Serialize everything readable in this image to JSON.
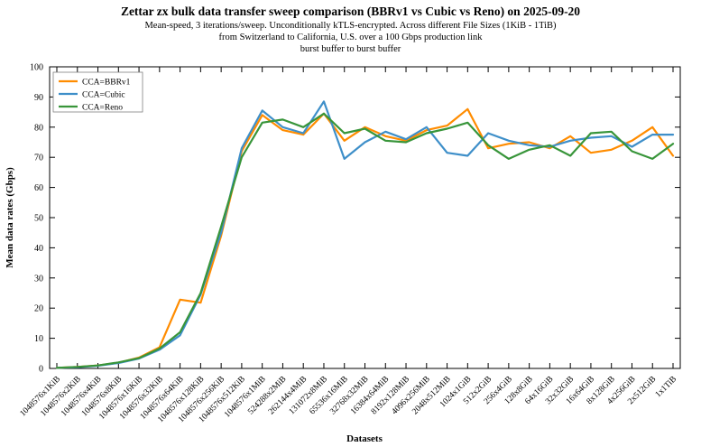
{
  "chart_data": {
    "type": "line",
    "title": "Zettar zx bulk data transfer sweep comparison (BBRv1 vs Cubic vs Reno) on 2025-09-20",
    "subtitles": [
      "Mean-speed, 3 iterations/sweep. Unconditionally kTLS-encrypted. Across different File Sizes (1KiB - 1TiB)",
      "from Switzerland to California, U.S. over a 100 Gbps production link",
      "burst buffer to burst buffer"
    ],
    "xlabel": "Datasets",
    "ylabel": "Mean data rates (Gbps)",
    "ylim": [
      0,
      100
    ],
    "ytick_step": 10,
    "grid": false,
    "legend_position": "top-left",
    "categories": [
      "1048576x1KiB",
      "1048576x2KiB",
      "1048576x4KiB",
      "1048576x8KiB",
      "1048576x16KiB",
      "1048576x32KiB",
      "1048576x64KiB",
      "1048576x128KiB",
      "1048576x256KiB",
      "1048576x512KiB",
      "1048576x1MiB",
      "524288x2MiB",
      "262144x4MiB",
      "131072x8MiB",
      "65536x16MiB",
      "32768x32MiB",
      "16384x64MiB",
      "8192x128MiB",
      "4096x256MiB",
      "2048x512MiB",
      "1024x1GiB",
      "512x2GiB",
      "256x4GiB",
      "128x8GiB",
      "64x16GiB",
      "32x32GiB",
      "16x64GiB",
      "8x128GiB",
      "4x256GiB",
      "2x512GiB",
      "1x1TiB"
    ],
    "series": [
      {
        "name": "CCA=BBRv1",
        "color": "#ff8c00",
        "values": [
          0.2,
          0.5,
          1.0,
          1.9,
          3.6,
          7.0,
          22.8,
          21.8,
          44.0,
          72.0,
          84.0,
          79.0,
          77.5,
          84.5,
          75.5,
          80.0,
          77.0,
          75.5,
          79.0,
          80.5,
          86.0,
          73.0,
          74.5,
          75.0,
          73.0,
          77.0,
          71.5,
          72.5,
          75.5,
          80.0,
          70.5
        ]
      },
      {
        "name": "CCA=Cubic",
        "color": "#3e8fc9",
        "values": [
          0.2,
          0.4,
          0.9,
          1.8,
          3.3,
          6.2,
          11.0,
          24.5,
          45.0,
          73.0,
          85.5,
          80.0,
          78.0,
          88.5,
          69.5,
          75.0,
          78.5,
          76.0,
          80.0,
          71.5,
          70.5,
          78.0,
          75.5,
          74.0,
          73.5,
          75.5,
          76.5,
          77.0,
          73.5,
          77.5,
          77.5
        ]
      },
      {
        "name": "CCA=Reno",
        "color": "#38953a",
        "values": [
          0.2,
          0.5,
          1.0,
          2.0,
          3.4,
          6.6,
          12.0,
          25.0,
          47.0,
          70.0,
          81.5,
          82.5,
          80.0,
          84.5,
          78.0,
          79.5,
          75.5,
          75.0,
          78.0,
          79.5,
          81.5,
          74.0,
          69.5,
          72.5,
          74.0,
          70.5,
          78.0,
          78.5,
          72.0,
          69.5,
          74.5
        ]
      }
    ]
  }
}
